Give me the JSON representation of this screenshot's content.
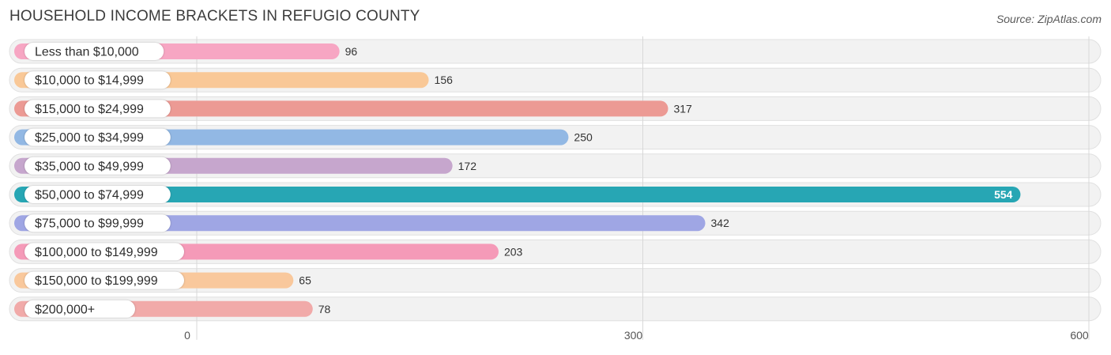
{
  "chart_data": {
    "type": "bar",
    "orientation": "horizontal",
    "title": "HOUSEHOLD INCOME BRACKETS IN REFUGIO COUNTY",
    "source": "Source: ZipAtlas.com",
    "categories": [
      "Less than $10,000",
      "$10,000 to $14,999",
      "$15,000 to $24,999",
      "$25,000 to $34,999",
      "$35,000 to $49,999",
      "$50,000 to $74,999",
      "$75,000 to $99,999",
      "$100,000 to $149,999",
      "$150,000 to $199,999",
      "$200,000+"
    ],
    "values": [
      96,
      156,
      317,
      250,
      172,
      554,
      342,
      203,
      65,
      78
    ],
    "value_labels": [
      "96",
      "156",
      "317",
      "250",
      "172",
      "554",
      "342",
      "203",
      "65",
      "78"
    ],
    "colors": [
      "#f7a6c3",
      "#f9c897",
      "#ec9a94",
      "#92b8e4",
      "#c6a6cd",
      "#27a6b4",
      "#9fa6e4",
      "#f59ab8",
      "#f9c89c",
      "#f1aaa9"
    ],
    "highlight_index": 5,
    "xlim": [
      0,
      600
    ],
    "ticks": [
      0,
      300,
      600
    ],
    "tick_labels": [
      "0",
      "300",
      "600"
    ],
    "grid": true
  }
}
